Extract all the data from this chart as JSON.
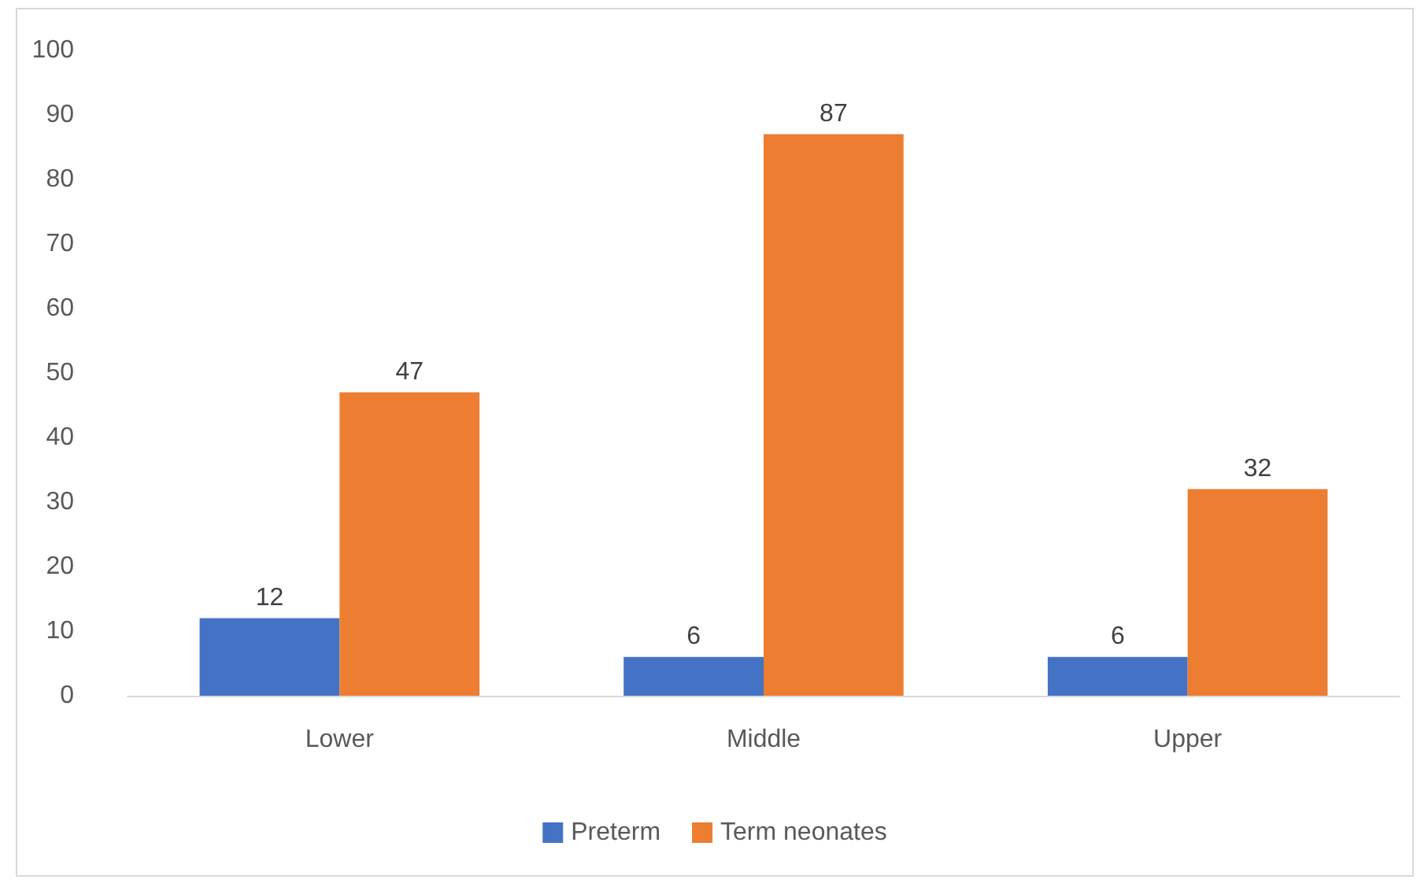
{
  "chart_data": {
    "type": "bar",
    "categories": [
      "Lower",
      "Middle",
      "Upper"
    ],
    "series": [
      {
        "name": "Preterm",
        "color": "#4472c4",
        "values": [
          12,
          6,
          6
        ]
      },
      {
        "name": "Term neonates",
        "color": "#ed7d31",
        "values": [
          47,
          87,
          32
        ]
      }
    ],
    "ylim": [
      0,
      100
    ],
    "yticks": [
      0,
      10,
      20,
      30,
      40,
      50,
      60,
      70,
      80,
      90,
      100
    ],
    "grid": false,
    "legend": "bottom",
    "data_labels": true
  }
}
